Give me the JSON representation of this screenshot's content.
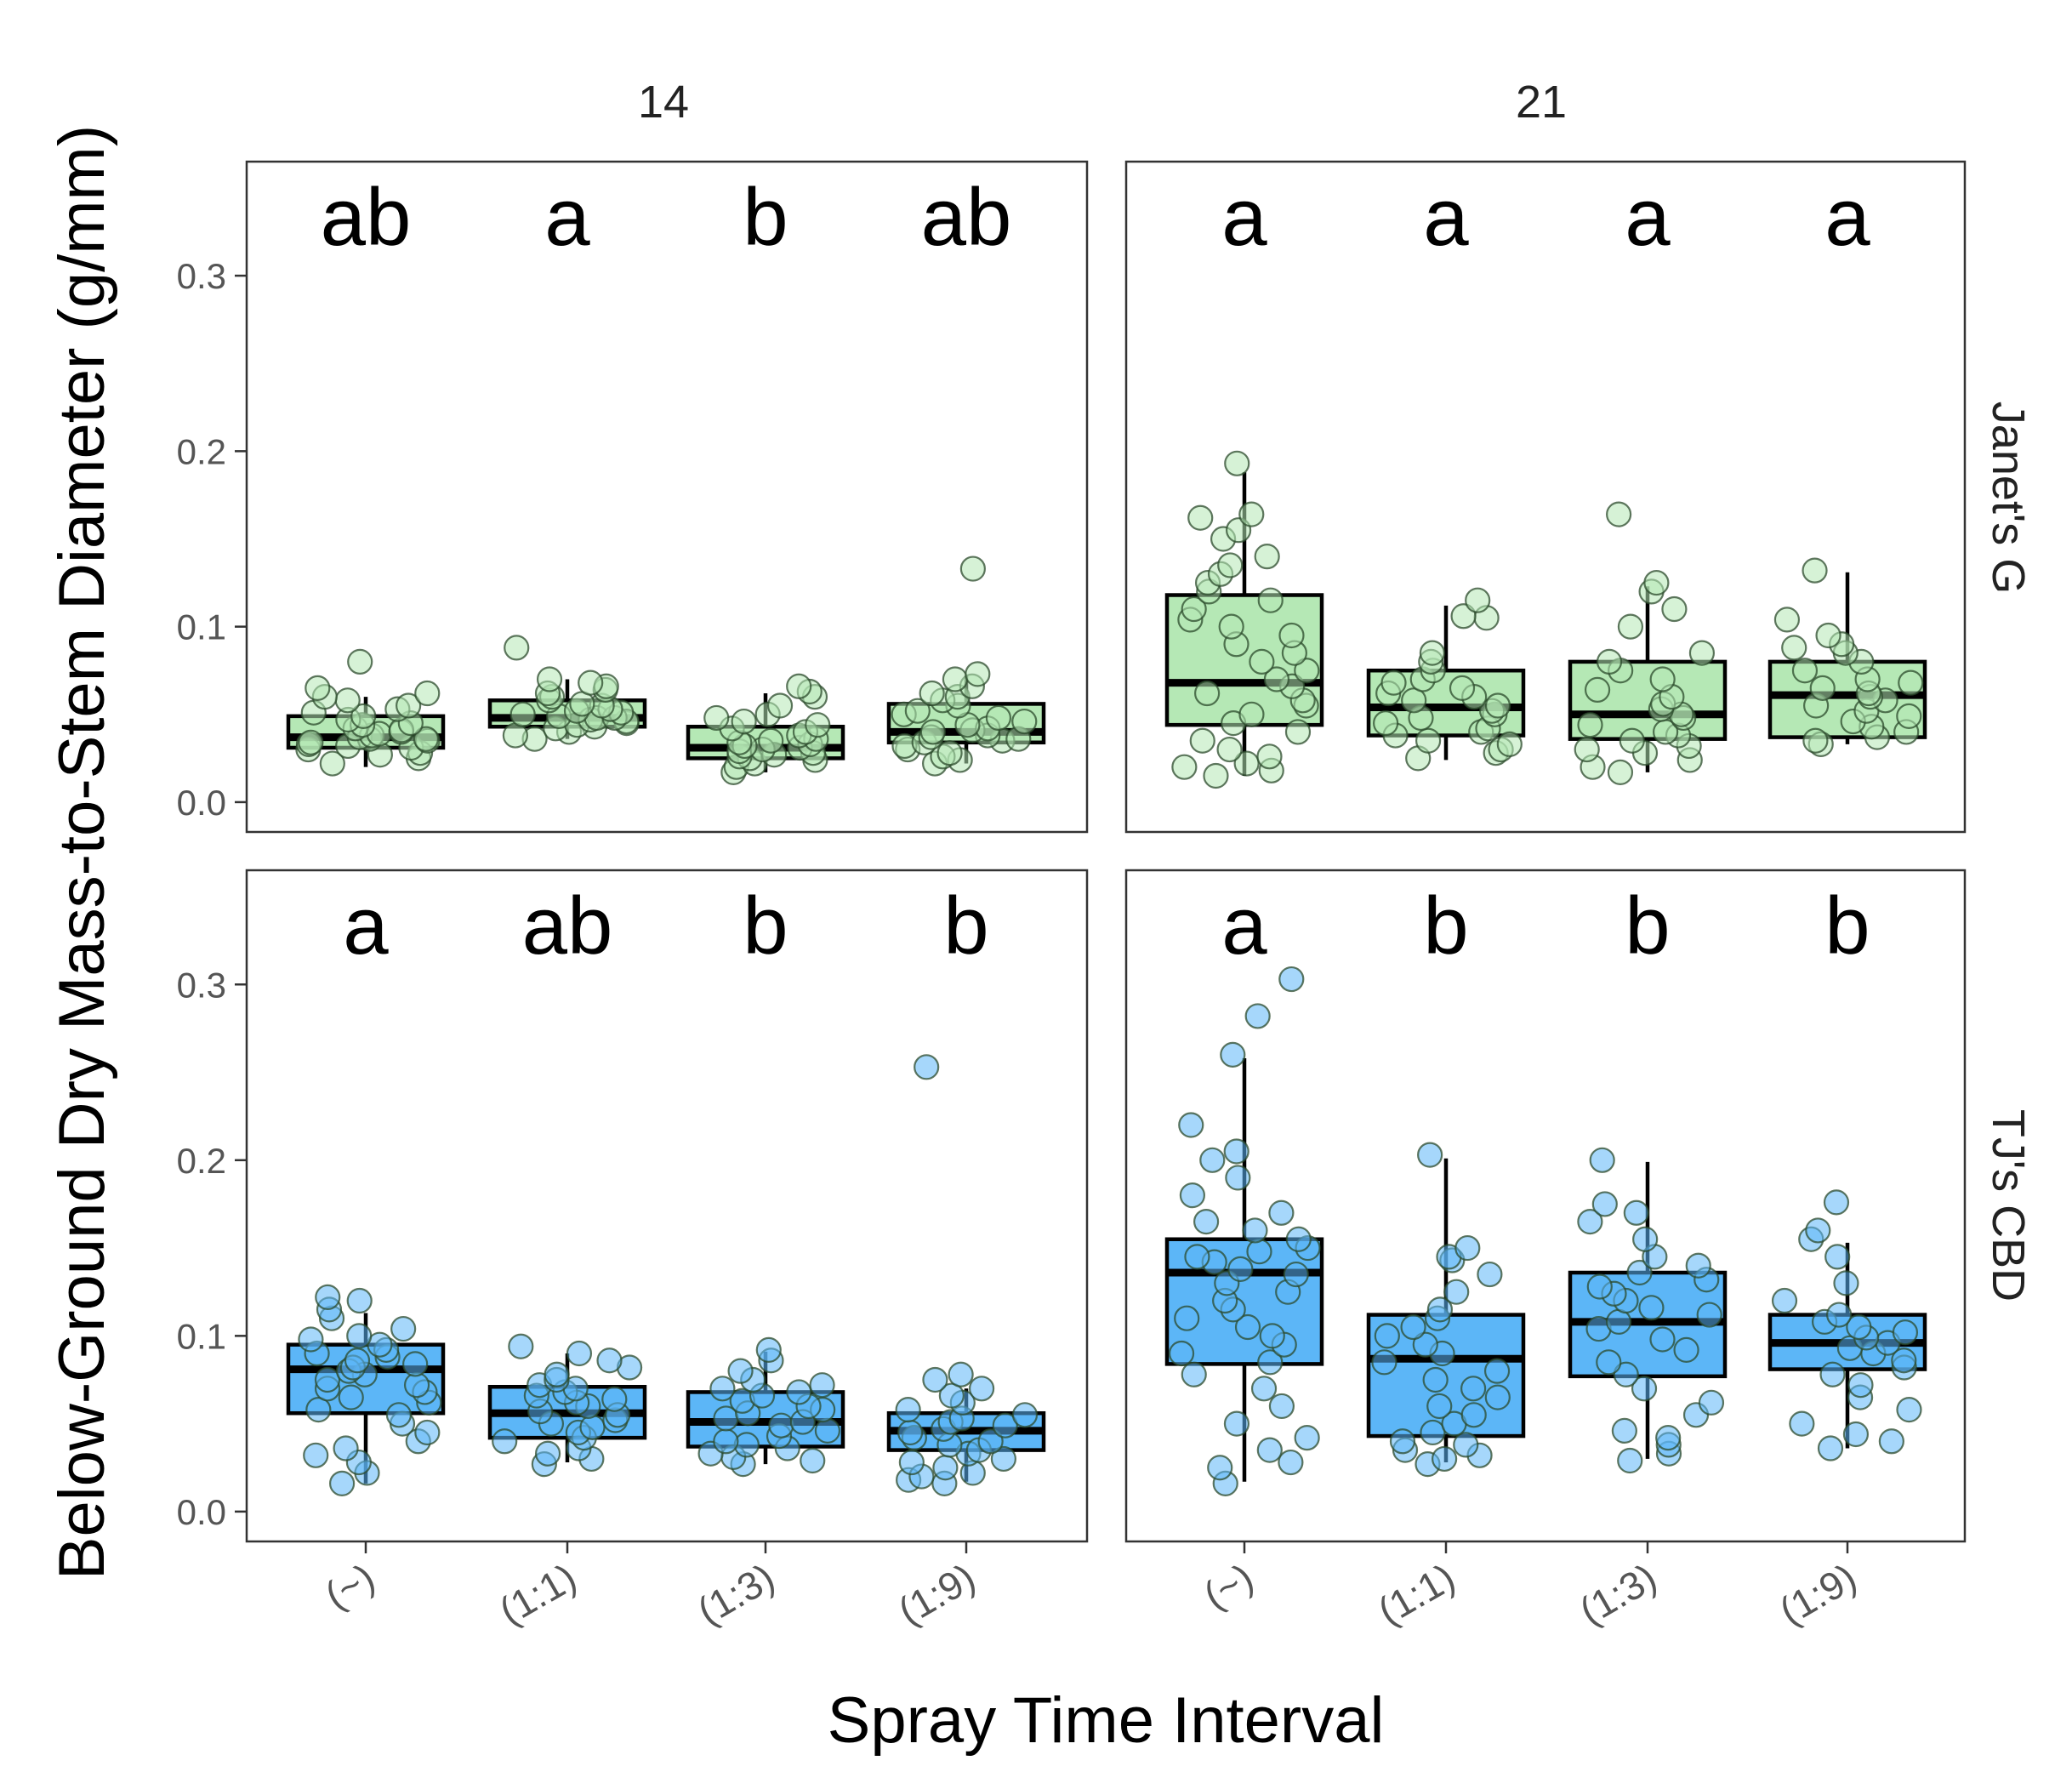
{
  "chart_data": {
    "type": "box",
    "title": "",
    "xlabel": "Spray Time Interval",
    "ylabel": "Below-Ground Dry Mass-to-Stem Diameter (g/mm)",
    "ylim": [
      -0.017,
      0.365
    ],
    "y_ticks": [
      0.0,
      0.1,
      0.2,
      0.3
    ],
    "y_tick_labels": [
      "0.0",
      "0.1",
      "0.2",
      "0.3"
    ],
    "categories": [
      "(~)",
      "(1:1)",
      "(1:3)",
      "(1:9)"
    ],
    "columns": [
      "14",
      "21"
    ],
    "rows": [
      "Janet's G",
      "TJ's CBD"
    ],
    "colors": {
      "Janet's G": "#b5e8b5",
      "TJ's CBD": "#5cb6f7"
    },
    "grid": false,
    "legend": "none",
    "panels": [
      {
        "column": "14",
        "row": "Janet's G",
        "letters": [
          "ab",
          "a",
          "b",
          "ab"
        ],
        "boxes": [
          {
            "category": "(~)",
            "whisker_low": 0.02,
            "q1": 0.031,
            "median": 0.037,
            "q3": 0.049,
            "whisker_high": 0.06,
            "points": [
              0.022,
              0.025,
              0.027,
              0.028,
              0.03,
              0.031,
              0.032,
              0.033,
              0.034,
              0.035,
              0.036,
              0.036,
              0.037,
              0.038,
              0.039,
              0.04,
              0.041,
              0.042,
              0.044,
              0.045,
              0.047,
              0.049,
              0.051,
              0.053,
              0.055,
              0.058,
              0.06,
              0.062,
              0.065,
              0.08
            ]
          },
          {
            "category": "(1:1)",
            "whisker_low": 0.036,
            "q1": 0.043,
            "median": 0.048,
            "q3": 0.058,
            "whisker_high": 0.07,
            "points": [
              0.036,
              0.038,
              0.04,
              0.042,
              0.043,
              0.044,
              0.045,
              0.046,
              0.047,
              0.048,
              0.048,
              0.049,
              0.05,
              0.051,
              0.052,
              0.053,
              0.055,
              0.056,
              0.058,
              0.06,
              0.062,
              0.064,
              0.066,
              0.068,
              0.07,
              0.088
            ]
          },
          {
            "category": "(1:3)",
            "whisker_low": 0.017,
            "q1": 0.025,
            "median": 0.031,
            "q3": 0.043,
            "whisker_high": 0.062,
            "points": [
              0.017,
              0.02,
              0.022,
              0.024,
              0.025,
              0.026,
              0.027,
              0.028,
              0.029,
              0.03,
              0.031,
              0.032,
              0.033,
              0.034,
              0.035,
              0.036,
              0.038,
              0.04,
              0.042,
              0.044,
              0.046,
              0.048,
              0.05,
              0.055,
              0.06,
              0.063,
              0.066
            ]
          },
          {
            "category": "(1:9)",
            "whisker_low": 0.022,
            "q1": 0.034,
            "median": 0.04,
            "q3": 0.056,
            "whisker_high": 0.072,
            "points": [
              0.022,
              0.024,
              0.026,
              0.028,
              0.03,
              0.032,
              0.034,
              0.035,
              0.036,
              0.037,
              0.038,
              0.04,
              0.041,
              0.042,
              0.044,
              0.046,
              0.048,
              0.05,
              0.052,
              0.055,
              0.058,
              0.06,
              0.062,
              0.066,
              0.07,
              0.073,
              0.133
            ]
          }
        ]
      },
      {
        "column": "21",
        "row": "Janet's G",
        "letters": [
          "a",
          "a",
          "a",
          "a"
        ],
        "boxes": [
          {
            "category": "(~)",
            "whisker_low": 0.015,
            "q1": 0.044,
            "median": 0.068,
            "q3": 0.118,
            "whisker_high": 0.188,
            "points": [
              0.015,
              0.018,
              0.02,
              0.022,
              0.026,
              0.03,
              0.035,
              0.04,
              0.045,
              0.05,
              0.055,
              0.058,
              0.062,
              0.066,
              0.07,
              0.075,
              0.08,
              0.085,
              0.09,
              0.095,
              0.1,
              0.104,
              0.11,
              0.115,
              0.12,
              0.125,
              0.13,
              0.135,
              0.14,
              0.15,
              0.155,
              0.162,
              0.164,
              0.193
            ]
          },
          {
            "category": "(1:1)",
            "whisker_low": 0.024,
            "q1": 0.038,
            "median": 0.054,
            "q3": 0.075,
            "whisker_high": 0.112,
            "points": [
              0.025,
              0.028,
              0.03,
              0.033,
              0.035,
              0.038,
              0.04,
              0.042,
              0.045,
              0.048,
              0.05,
              0.052,
              0.055,
              0.058,
              0.06,
              0.062,
              0.065,
              0.068,
              0.07,
              0.075,
              0.08,
              0.085,
              0.105,
              0.106,
              0.115
            ]
          },
          {
            "category": "(1:3)",
            "whisker_low": 0.017,
            "q1": 0.036,
            "median": 0.05,
            "q3": 0.08,
            "whisker_high": 0.123,
            "points": [
              0.017,
              0.02,
              0.024,
              0.028,
              0.03,
              0.032,
              0.035,
              0.038,
              0.04,
              0.044,
              0.048,
              0.05,
              0.053,
              0.056,
              0.06,
              0.064,
              0.07,
              0.075,
              0.08,
              0.085,
              0.1,
              0.11,
              0.12,
              0.125,
              0.164
            ]
          },
          {
            "category": "(1:9)",
            "whisker_low": 0.033,
            "q1": 0.037,
            "median": 0.061,
            "q3": 0.08,
            "whisker_high": 0.131,
            "points": [
              0.033,
              0.035,
              0.037,
              0.04,
              0.043,
              0.046,
              0.049,
              0.052,
              0.055,
              0.058,
              0.06,
              0.062,
              0.065,
              0.068,
              0.07,
              0.075,
              0.08,
              0.085,
              0.088,
              0.09,
              0.095,
              0.104,
              0.132
            ]
          }
        ]
      },
      {
        "column": "14",
        "row": "TJ's CBD",
        "letters": [
          "a",
          "ab",
          "b",
          "b"
        ],
        "boxes": [
          {
            "category": "(~)",
            "whisker_low": 0.016,
            "q1": 0.056,
            "median": 0.081,
            "q3": 0.095,
            "whisker_high": 0.113,
            "points": [
              0.016,
              0.022,
              0.028,
              0.032,
              0.036,
              0.04,
              0.045,
              0.05,
              0.055,
              0.058,
              0.062,
              0.065,
              0.068,
              0.07,
              0.072,
              0.075,
              0.078,
              0.08,
              0.082,
              0.084,
              0.086,
              0.088,
              0.09,
              0.092,
              0.095,
              0.098,
              0.1,
              0.104,
              0.11,
              0.115,
              0.12,
              0.122
            ]
          },
          {
            "category": "(1:1)",
            "whisker_low": 0.028,
            "q1": 0.042,
            "median": 0.056,
            "q3": 0.071,
            "whisker_high": 0.09,
            "points": [
              0.027,
              0.03,
              0.033,
              0.036,
              0.04,
              0.042,
              0.045,
              0.048,
              0.05,
              0.052,
              0.055,
              0.057,
              0.06,
              0.062,
              0.064,
              0.066,
              0.068,
              0.07,
              0.072,
              0.075,
              0.078,
              0.082,
              0.086,
              0.09,
              0.094
            ]
          },
          {
            "category": "(1:3)",
            "whisker_low": 0.027,
            "q1": 0.037,
            "median": 0.051,
            "q3": 0.068,
            "whisker_high": 0.091,
            "points": [
              0.027,
              0.029,
              0.031,
              0.033,
              0.036,
              0.038,
              0.04,
              0.043,
              0.046,
              0.049,
              0.051,
              0.053,
              0.056,
              0.058,
              0.06,
              0.063,
              0.066,
              0.068,
              0.07,
              0.072,
              0.075,
              0.08,
              0.086,
              0.092
            ]
          },
          {
            "category": "(1:9)",
            "whisker_low": 0.017,
            "q1": 0.035,
            "median": 0.046,
            "q3": 0.056,
            "whisker_high": 0.07,
            "points": [
              0.016,
              0.018,
              0.02,
              0.022,
              0.025,
              0.028,
              0.03,
              0.033,
              0.035,
              0.038,
              0.04,
              0.042,
              0.045,
              0.047,
              0.049,
              0.051,
              0.053,
              0.055,
              0.058,
              0.062,
              0.066,
              0.07,
              0.075,
              0.078,
              0.253
            ]
          }
        ]
      },
      {
        "column": "21",
        "row": "TJ's CBD",
        "letters": [
          "a",
          "b",
          "b",
          "b"
        ],
        "boxes": [
          {
            "category": "(~)",
            "whisker_low": 0.017,
            "q1": 0.084,
            "median": 0.136,
            "q3": 0.155,
            "whisker_high": 0.258,
            "points": [
              0.016,
              0.025,
              0.028,
              0.035,
              0.042,
              0.05,
              0.06,
              0.07,
              0.078,
              0.085,
              0.09,
              0.095,
              0.1,
              0.105,
              0.11,
              0.115,
              0.12,
              0.125,
              0.13,
              0.135,
              0.138,
              0.142,
              0.145,
              0.148,
              0.15,
              0.155,
              0.16,
              0.165,
              0.17,
              0.18,
              0.19,
              0.2,
              0.205,
              0.22,
              0.26,
              0.282,
              0.303
            ]
          },
          {
            "category": "(1:1)",
            "whisker_low": 0.028,
            "q1": 0.043,
            "median": 0.087,
            "q3": 0.112,
            "whisker_high": 0.201,
            "points": [
              0.027,
              0.03,
              0.032,
              0.035,
              0.038,
              0.04,
              0.045,
              0.05,
              0.055,
              0.06,
              0.065,
              0.07,
              0.075,
              0.08,
              0.085,
              0.09,
              0.095,
              0.1,
              0.105,
              0.11,
              0.115,
              0.125,
              0.135,
              0.143,
              0.145,
              0.15,
              0.203
            ]
          },
          {
            "category": "(1:3)",
            "whisker_low": 0.03,
            "q1": 0.077,
            "median": 0.108,
            "q3": 0.136,
            "whisker_high": 0.199,
            "points": [
              0.029,
              0.033,
              0.038,
              0.042,
              0.046,
              0.055,
              0.062,
              0.07,
              0.078,
              0.085,
              0.092,
              0.098,
              0.104,
              0.108,
              0.112,
              0.116,
              0.12,
              0.124,
              0.128,
              0.132,
              0.136,
              0.14,
              0.145,
              0.155,
              0.165,
              0.17,
              0.175,
              0.2
            ]
          },
          {
            "category": "(1:9)",
            "whisker_low": 0.036,
            "q1": 0.081,
            "median": 0.096,
            "q3": 0.112,
            "whisker_high": 0.153,
            "points": [
              0.036,
              0.04,
              0.044,
              0.05,
              0.058,
              0.065,
              0.072,
              0.078,
              0.082,
              0.086,
              0.09,
              0.093,
              0.096,
              0.099,
              0.102,
              0.105,
              0.108,
              0.112,
              0.12,
              0.13,
              0.145,
              0.155,
              0.16,
              0.176
            ]
          }
        ]
      }
    ]
  }
}
